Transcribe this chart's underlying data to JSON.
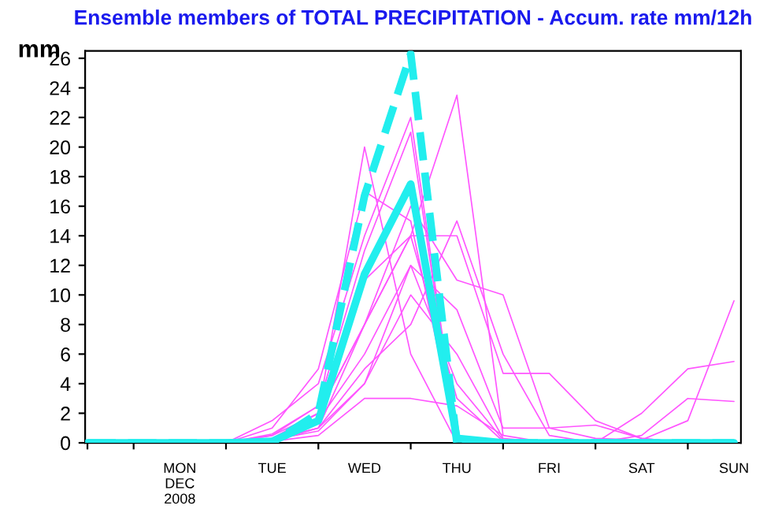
{
  "chart_data": {
    "type": "line",
    "title": "Ensemble members of TOTAL PRECIPITATION - Accum. rate mm/12h",
    "ylabel": "mm",
    "categories": [
      null,
      null,
      "MON\nDEC\n2008",
      null,
      "TUE",
      null,
      "WED",
      null,
      "THU",
      null,
      "FRI",
      null,
      "SAT",
      null,
      "SUN"
    ],
    "series": [
      {
        "color": "#ff55ff",
        "values": [
          null,
          null,
          null,
          0,
          0.3,
          2,
          20,
          6,
          0,
          null,
          null,
          null,
          null,
          null,
          null
        ]
      },
      {
        "color": "#ff55ff",
        "values": [
          null,
          null,
          null,
          0,
          0.2,
          1,
          8,
          14,
          23.5,
          0.5,
          null,
          null,
          null,
          null,
          null
        ]
      },
      {
        "color": "#ff55ff",
        "values": [
          null,
          null,
          null,
          0,
          1.5,
          4,
          14,
          22,
          0.5,
          0,
          null,
          null,
          null,
          null,
          null
        ]
      },
      {
        "color": "#ff55ff",
        "values": [
          null,
          null,
          null,
          0,
          1,
          5,
          17,
          15,
          0.3,
          0,
          null,
          null,
          null,
          null,
          null
        ]
      },
      {
        "color": "#ff55ff",
        "values": [
          null,
          null,
          null,
          0,
          0.5,
          2,
          8,
          16,
          11,
          10,
          1,
          0.3,
          0.2,
          null,
          null
        ]
      },
      {
        "color": "#ff55ff",
        "values": [
          null,
          null,
          null,
          0,
          0.1,
          0.5,
          3,
          3,
          2.5,
          0.5,
          0,
          null,
          null,
          null,
          null
        ]
      },
      {
        "color": "#ff55ff",
        "values": [
          null,
          null,
          null,
          0,
          0.6,
          2.5,
          11,
          14,
          14,
          4.7,
          4.7,
          1.5,
          0.3,
          0,
          null
        ]
      },
      {
        "color": "#ff55ff",
        "values": [
          null,
          null,
          null,
          0,
          0.2,
          1,
          5,
          8,
          15,
          6,
          0.5,
          0,
          null,
          null,
          null
        ]
      },
      {
        "color": "#ff55ff",
        "values": [
          null,
          null,
          null,
          0,
          0.1,
          1,
          4,
          10,
          6,
          0.3,
          0,
          0,
          0.5,
          3,
          2.8
        ]
      },
      {
        "color": "#ff55ff",
        "values": [
          null,
          null,
          null,
          0,
          0.2,
          1.5,
          6,
          12,
          4,
          0.2,
          0,
          0,
          0.2,
          1.5,
          9.6
        ]
      },
      {
        "color": "#ff55ff",
        "values": [
          null,
          null,
          null,
          0,
          0.3,
          2,
          8,
          14,
          3,
          0.1,
          0,
          0,
          2,
          5,
          5.5
        ]
      },
      {
        "color": "#ff55ff",
        "values": [
          null,
          null,
          null,
          0,
          0.5,
          2.5,
          13,
          21,
          0.3,
          0,
          null,
          null,
          null,
          null,
          null
        ]
      },
      {
        "color": "#ff55ff",
        "values": [
          null,
          null,
          null,
          0,
          0.2,
          0.8,
          4,
          12,
          9,
          1,
          1,
          1.2,
          0.3,
          0,
          null
        ]
      },
      {
        "color": "#22eeee",
        "line_style": "solid",
        "values": [
          0,
          0,
          0,
          0,
          0.1,
          1.5,
          11.4,
          17.5,
          0.3,
          0,
          0,
          0,
          0,
          0,
          0
        ]
      },
      {
        "color": "#22eeee",
        "line_style": "dashed",
        "values": [
          0,
          0,
          0,
          0,
          0,
          2,
          16.7,
          26.3,
          0,
          0,
          0,
          0,
          0,
          0,
          0
        ]
      }
    ],
    "ylim": [
      0,
      26.5
    ],
    "yticks": [
      0,
      2,
      4,
      6,
      8,
      10,
      12,
      14,
      16,
      18,
      20,
      22,
      24,
      26
    ]
  }
}
